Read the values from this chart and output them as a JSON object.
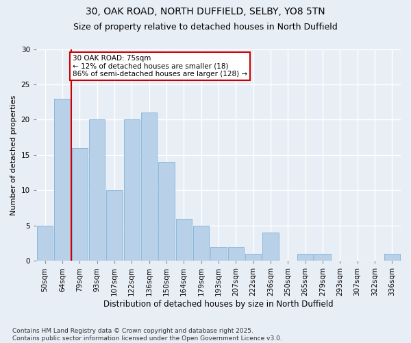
{
  "title_line1": "30, OAK ROAD, NORTH DUFFIELD, SELBY, YO8 5TN",
  "title_line2": "Size of property relative to detached houses in North Duffield",
  "xlabel": "Distribution of detached houses by size in North Duffield",
  "ylabel": "Number of detached properties",
  "categories": [
    "50sqm",
    "64sqm",
    "79sqm",
    "93sqm",
    "107sqm",
    "122sqm",
    "136sqm",
    "150sqm",
    "164sqm",
    "179sqm",
    "193sqm",
    "207sqm",
    "222sqm",
    "236sqm",
    "250sqm",
    "265sqm",
    "279sqm",
    "293sqm",
    "307sqm",
    "322sqm",
    "336sqm"
  ],
  "values": [
    5,
    23,
    16,
    20,
    10,
    20,
    21,
    14,
    6,
    5,
    2,
    2,
    1,
    4,
    0,
    1,
    1,
    0,
    0,
    0,
    1
  ],
  "bar_color": "#b8d0e8",
  "bar_edge_color": "#6fa8d4",
  "annotation_text": "30 OAK ROAD: 75sqm\n← 12% of detached houses are smaller (18)\n86% of semi-detached houses are larger (128) →",
  "annotation_box_color": "#ffffff",
  "annotation_box_edge": "#cc0000",
  "vline_color": "#cc0000",
  "vline_x_index": 1.5,
  "ylim": [
    0,
    30
  ],
  "yticks": [
    0,
    5,
    10,
    15,
    20,
    25,
    30
  ],
  "footer_text": "Contains HM Land Registry data © Crown copyright and database right 2025.\nContains public sector information licensed under the Open Government Licence v3.0.",
  "bg_color": "#e8eef6",
  "plot_bg_color": "#e8eef6",
  "grid_color": "#ffffff",
  "title1_fontsize": 10,
  "title2_fontsize": 9,
  "xlabel_fontsize": 8.5,
  "ylabel_fontsize": 8,
  "tick_fontsize": 7.5,
  "annotation_fontsize": 7.5,
  "footer_fontsize": 6.5
}
